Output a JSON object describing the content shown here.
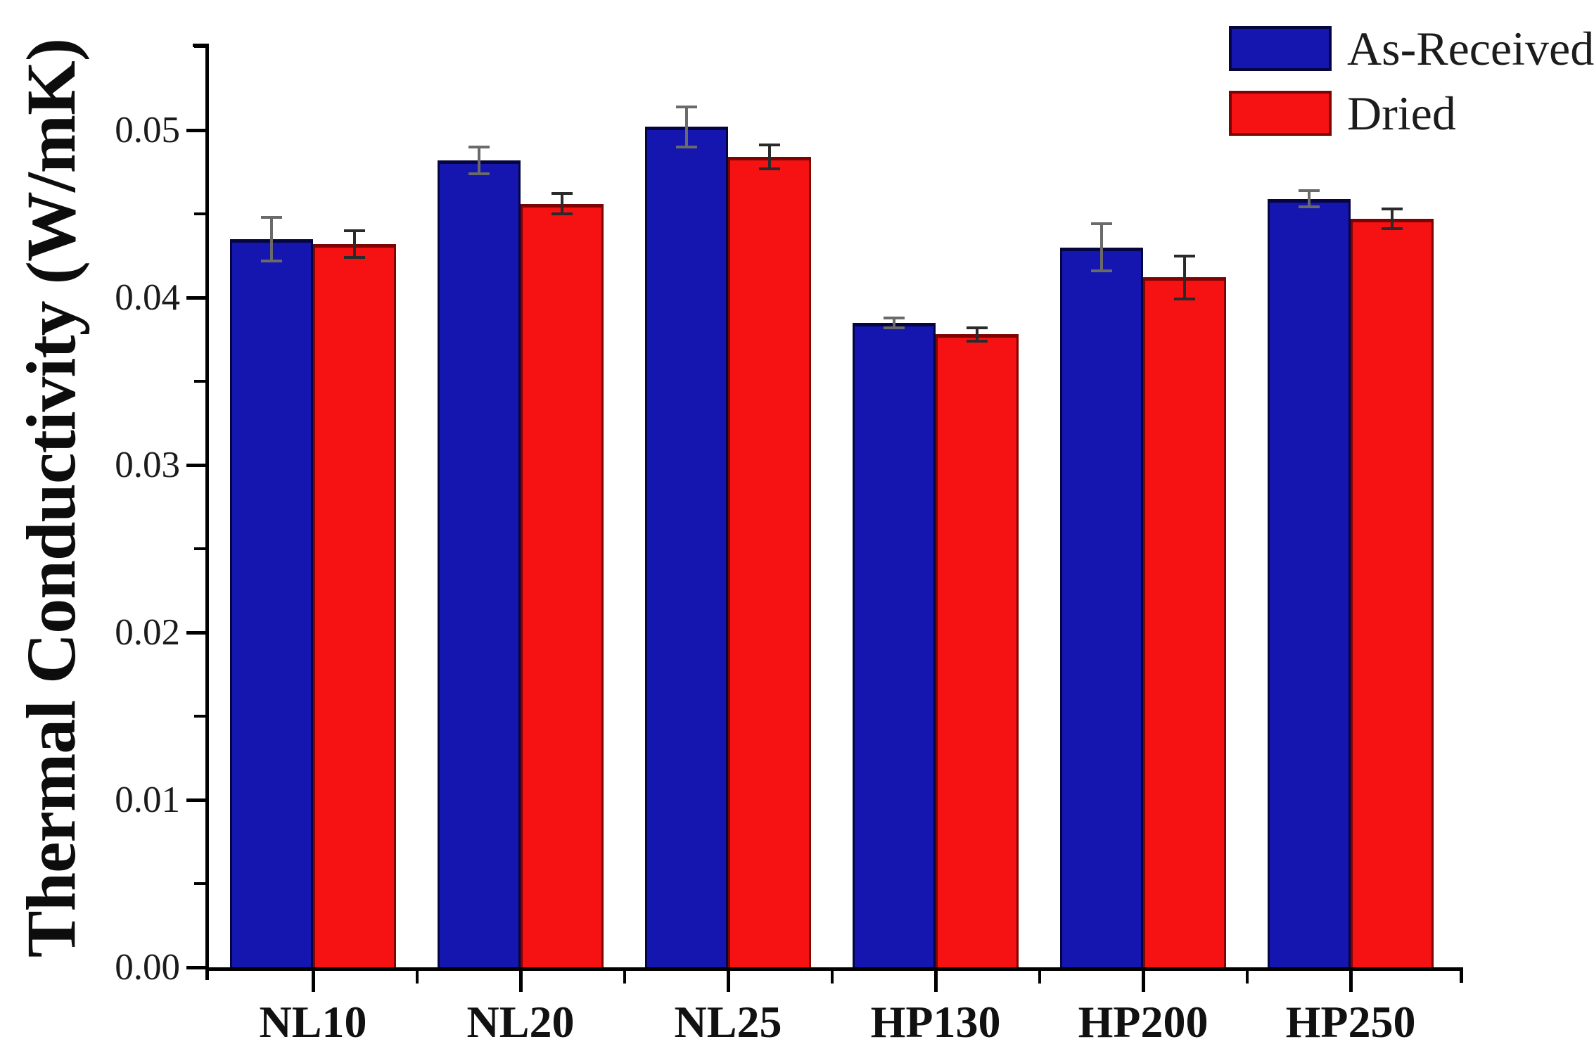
{
  "figure": {
    "background": "#ffffff",
    "axis_color": "#000000"
  },
  "chart_data": {
    "type": "bar",
    "title": "",
    "xlabel": "",
    "ylabel": "Thermal Conductivity (W/mK)",
    "categories": [
      "NL10",
      "NL20",
      "NL25",
      "HP130",
      "HP200",
      "HP250"
    ],
    "series": [
      {
        "name": "As-Received",
        "color": "#1515B0",
        "edge_color": "#05053F",
        "error_color": "#6a6a6a",
        "values": [
          0.0435,
          0.0482,
          0.0502,
          0.0385,
          0.043,
          0.0459
        ],
        "errors": [
          0.0013,
          0.0008,
          0.0012,
          0.0003,
          0.0014,
          0.0005
        ]
      },
      {
        "name": "Dried",
        "color": "#F61212",
        "edge_color": "#7E0404",
        "error_color": "#2a2a2a",
        "values": [
          0.0432,
          0.0456,
          0.0484,
          0.0378,
          0.0412,
          0.0447
        ],
        "errors": [
          0.0008,
          0.0006,
          0.0007,
          0.0004,
          0.0013,
          0.0006
        ]
      }
    ],
    "error_bars": true,
    "grid": false,
    "legend_position": "top-right",
    "ylim": [
      0,
      0.0552
    ],
    "y_major_ticks": [
      {
        "value": 0.0,
        "label": "0.00"
      },
      {
        "value": 0.01,
        "label": "0.01"
      },
      {
        "value": 0.02,
        "label": "0.02"
      },
      {
        "value": 0.03,
        "label": "0.03"
      },
      {
        "value": 0.04,
        "label": "0.04"
      },
      {
        "value": 0.05,
        "label": "0.05"
      }
    ],
    "y_minor_tick_values": [
      0.005,
      0.015,
      0.025,
      0.035,
      0.045,
      0.055
    ]
  }
}
